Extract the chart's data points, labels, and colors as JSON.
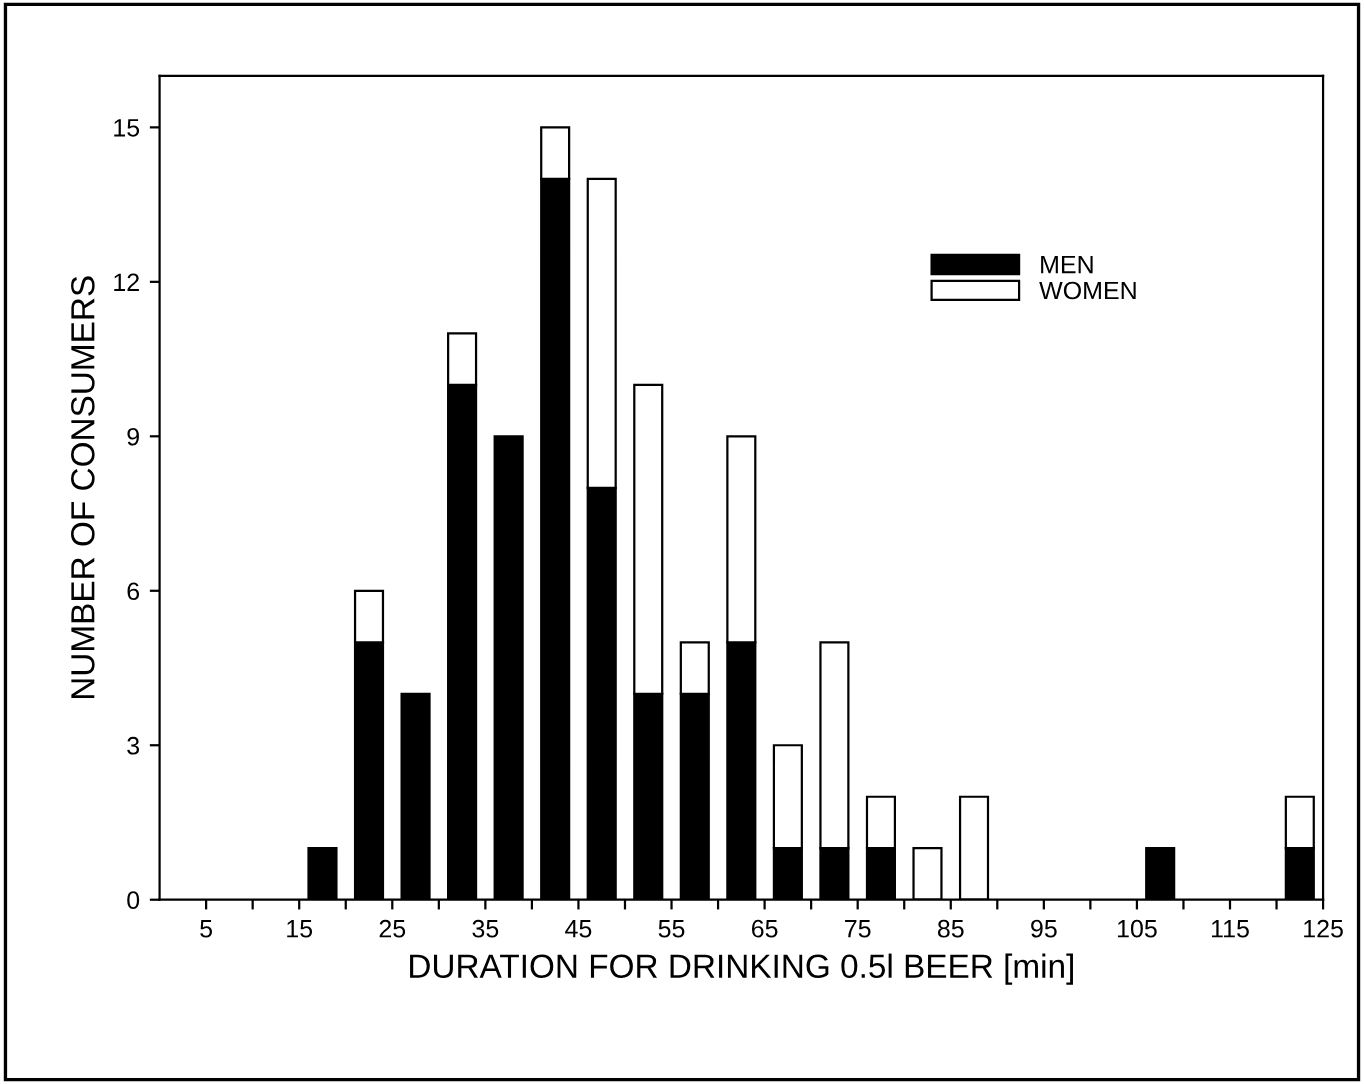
{
  "chart_data": {
    "type": "bar",
    "stacked": true,
    "xlabel": "DURATION FOR DRINKING 0.5l BEER [min]",
    "ylabel": "NUMBER OF CONSUMERS",
    "x": [
      17.5,
      22.5,
      27.5,
      32.5,
      37.5,
      42.5,
      47.5,
      52.5,
      57.5,
      62.5,
      67.5,
      72.5,
      77.5,
      82.5,
      87.5,
      107.5,
      122.5
    ],
    "series": [
      {
        "name": "MEN",
        "color": "#000000",
        "values": [
          1,
          5,
          4,
          10,
          9,
          14,
          8,
          4,
          4,
          5,
          1,
          1,
          1,
          0,
          0,
          1,
          1
        ]
      },
      {
        "name": "WOMEN",
        "color": "#ffffff",
        "values": [
          0,
          1,
          0,
          1,
          0,
          1,
          6,
          6,
          1,
          4,
          2,
          4,
          1,
          1,
          2,
          0,
          1
        ]
      }
    ],
    "xlim": [
      0,
      125
    ],
    "xticks": [
      5,
      {
        "value": 10,
        "label": null
      },
      15,
      {
        "value": 20,
        "label": null
      },
      25,
      {
        "value": 30,
        "label": null
      },
      35,
      {
        "value": 40,
        "label": null
      },
      45,
      {
        "value": 50,
        "label": null
      },
      55,
      {
        "value": 60,
        "label": null
      },
      65,
      {
        "value": 70,
        "label": null
      },
      75,
      {
        "value": 80,
        "label": null
      },
      85,
      {
        "value": 90,
        "label": null
      },
      95,
      {
        "value": 100,
        "label": null
      },
      105,
      {
        "value": 110,
        "label": null
      },
      115,
      {
        "value": 120,
        "label": null
      },
      125
    ],
    "ylim": [
      0,
      16
    ],
    "yticks": [
      0,
      3,
      6,
      9,
      12,
      15
    ],
    "grid": false,
    "legend": "top right"
  }
}
